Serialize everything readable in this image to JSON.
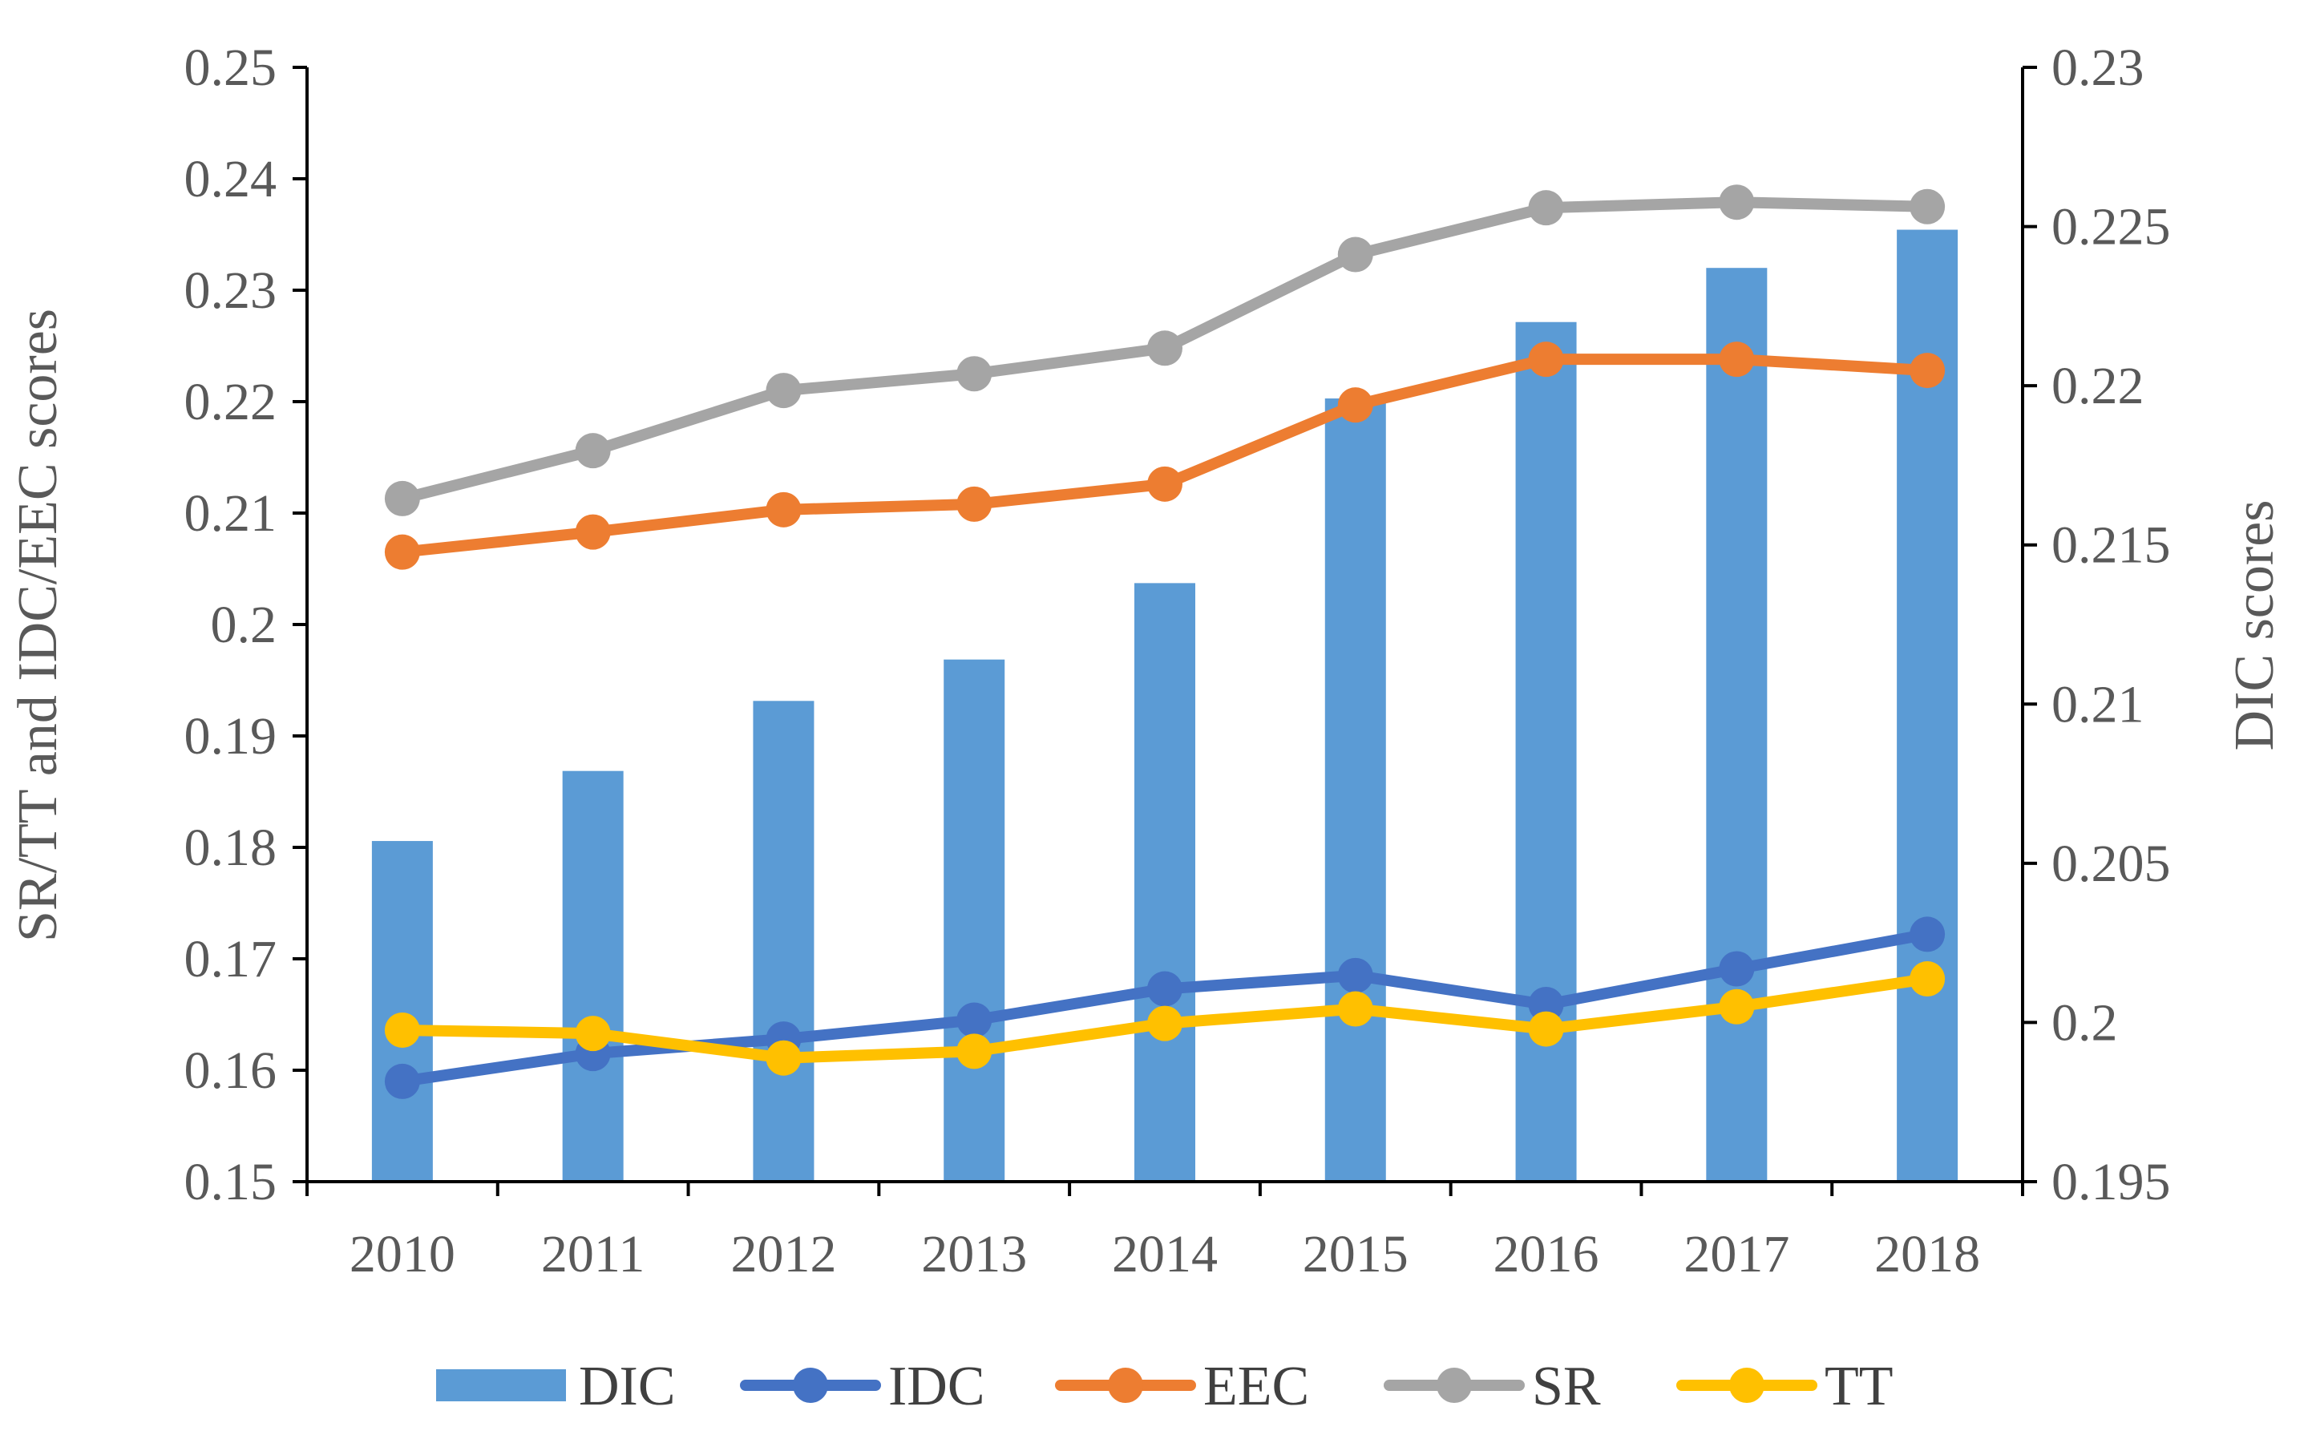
{
  "chart_data": {
    "type": "bar+line",
    "categories": [
      "2010",
      "2011",
      "2012",
      "2013",
      "2014",
      "2015",
      "2016",
      "2017",
      "2018"
    ],
    "series": [
      {
        "name": "DIC",
        "kind": "bar",
        "axis": "right",
        "color": "#5B9BD5",
        "values": [
          0.2057,
          0.2079,
          0.2101,
          0.2114,
          0.2138,
          0.2196,
          0.222,
          0.2237,
          0.2249
        ]
      },
      {
        "name": "IDC",
        "kind": "line",
        "axis": "left",
        "color": "#4472C4",
        "values": [
          0.159,
          0.1615,
          0.1628,
          0.1645,
          0.1673,
          0.1685,
          0.1659,
          0.1691,
          0.1722
        ]
      },
      {
        "name": "EEC",
        "kind": "line",
        "axis": "left",
        "color": "#ED7D31",
        "values": [
          0.2065,
          0.2083,
          0.2103,
          0.2108,
          0.2126,
          0.2197,
          0.2238,
          0.2238,
          0.2228
        ]
      },
      {
        "name": "SR",
        "kind": "line",
        "axis": "left",
        "color": "#A5A5A5",
        "values": [
          0.2113,
          0.2156,
          0.221,
          0.2225,
          0.2248,
          0.2332,
          0.2374,
          0.2379,
          0.2375
        ]
      },
      {
        "name": "TT",
        "kind": "line",
        "axis": "left",
        "color": "#FFC000",
        "values": [
          0.1636,
          0.1633,
          0.1611,
          0.1617,
          0.1642,
          0.1655,
          0.1637,
          0.1657,
          0.1682
        ]
      }
    ],
    "ylabel_left": "SR/TT and IDC/EEC scores",
    "ylabel_right": "DIC scores",
    "ylim_left": [
      0.15,
      0.25
    ],
    "ylim_right": [
      0.195,
      0.23
    ],
    "yticks_left": [
      "0.15",
      "0.16",
      "0.17",
      "0.18",
      "0.19",
      "0.2",
      "0.21",
      "0.22",
      "0.23",
      "0.24",
      "0.25"
    ],
    "yticks_right": [
      "0.195",
      "0.2",
      "0.205",
      "0.21",
      "0.215",
      "0.22",
      "0.225",
      "0.23"
    ],
    "legend_position": "bottom",
    "grid": false
  }
}
